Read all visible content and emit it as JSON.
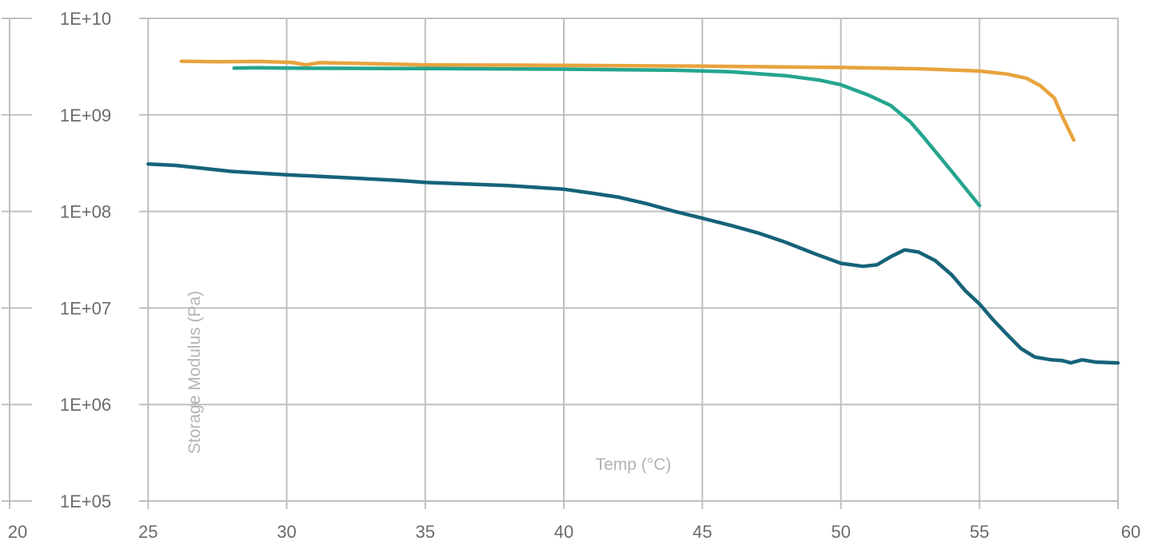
{
  "chart_data": {
    "type": "line",
    "title": "",
    "xlabel": "Temp (°C)",
    "ylabel": "Storage Modulus (Pa)",
    "xlim": [
      20,
      60
    ],
    "ylim": [
      100000,
      10000000000
    ],
    "yscale": "log",
    "grid": true,
    "legend": "none",
    "x_ticks": [
      "20",
      "25",
      "30",
      "35",
      "40",
      "45",
      "50",
      "55",
      "60"
    ],
    "y_ticks": [
      "1E+05",
      "1E+06",
      "1E+07",
      "1E+08",
      "1E+09",
      "1E+10"
    ],
    "series": [
      {
        "color": "#E8A33D",
        "points": [
          [
            26.2,
            3600000000
          ],
          [
            27.5,
            3550000000
          ],
          [
            29,
            3580000000
          ],
          [
            30.2,
            3500000000
          ],
          [
            30.7,
            3300000000
          ],
          [
            31.2,
            3480000000
          ],
          [
            33,
            3400000000
          ],
          [
            35,
            3300000000
          ],
          [
            40,
            3260000000
          ],
          [
            45,
            3200000000
          ],
          [
            50,
            3100000000
          ],
          [
            53,
            3000000000
          ],
          [
            55,
            2850000000
          ],
          [
            56,
            2650000000
          ],
          [
            56.7,
            2400000000
          ],
          [
            57.2,
            2000000000
          ],
          [
            57.7,
            1500000000
          ],
          [
            58,
            950000000
          ],
          [
            58.4,
            550000000
          ]
        ]
      },
      {
        "color": "#24A58E",
        "points": [
          [
            28.1,
            3050000000
          ],
          [
            29,
            3080000000
          ],
          [
            30,
            3050000000
          ],
          [
            35,
            3020000000
          ],
          [
            40,
            2980000000
          ],
          [
            44,
            2900000000
          ],
          [
            46,
            2800000000
          ],
          [
            48,
            2550000000
          ],
          [
            49.2,
            2300000000
          ],
          [
            50,
            2050000000
          ],
          [
            51,
            1600000000
          ],
          [
            51.8,
            1250000000
          ],
          [
            52.5,
            850000000
          ],
          [
            53,
            580000000
          ],
          [
            54,
            260000000
          ],
          [
            55,
            115000000
          ]
        ]
      },
      {
        "color": "#16637A",
        "points": [
          [
            25,
            310000000
          ],
          [
            26,
            300000000
          ],
          [
            28,
            260000000
          ],
          [
            30,
            240000000
          ],
          [
            32,
            225000000
          ],
          [
            34,
            210000000
          ],
          [
            35,
            200000000
          ],
          [
            38,
            185000000
          ],
          [
            40,
            170000000
          ],
          [
            41,
            155000000
          ],
          [
            42,
            140000000
          ],
          [
            43,
            120000000
          ],
          [
            44,
            100000000
          ],
          [
            45,
            85000000
          ],
          [
            46,
            72000000
          ],
          [
            47,
            60000000
          ],
          [
            48,
            48000000
          ],
          [
            49,
            37000000
          ],
          [
            50,
            29000000
          ],
          [
            50.8,
            27000000
          ],
          [
            51.3,
            28000000
          ],
          [
            51.8,
            34000000
          ],
          [
            52.3,
            40000000
          ],
          [
            52.8,
            38000000
          ],
          [
            53.4,
            31000000
          ],
          [
            54,
            22000000
          ],
          [
            54.5,
            15000000
          ],
          [
            55,
            11000000
          ],
          [
            55.5,
            7500000
          ],
          [
            56,
            5300000
          ],
          [
            56.5,
            3800000
          ],
          [
            57,
            3100000
          ],
          [
            57.6,
            2900000
          ],
          [
            58,
            2850000
          ],
          [
            58.3,
            2700000
          ],
          [
            58.7,
            2900000
          ],
          [
            59.2,
            2750000
          ],
          [
            60,
            2700000
          ]
        ]
      }
    ]
  }
}
